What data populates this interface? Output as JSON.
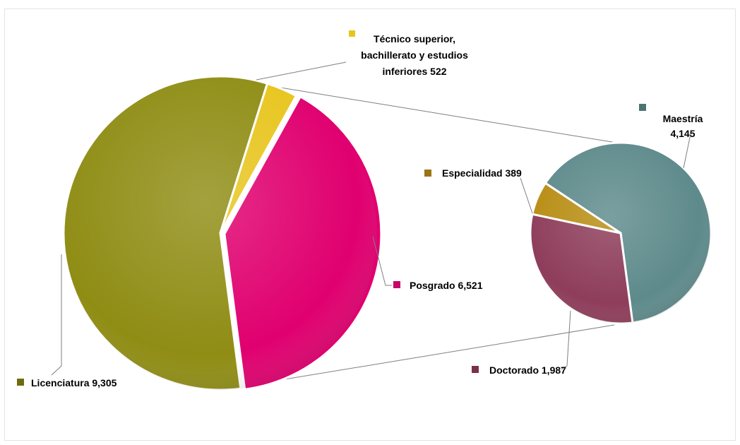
{
  "chart_data": {
    "type": "pie",
    "subtype": "pie-of-pie",
    "title": "",
    "primary": {
      "slices": [
        {
          "label": "Licenciatura",
          "value": 9305,
          "value_label": "9,305",
          "color": "#8f8d14"
        },
        {
          "label": "Técnico superior, bachillerato y estudios inferiores",
          "value": 522,
          "value_label": "522",
          "color": "#e8c51e"
        },
        {
          "label": "Posgrado",
          "value": 6521,
          "value_label": "6,521",
          "color": "#e0006f"
        }
      ]
    },
    "secondary": {
      "breakdown_of": "Posgrado",
      "slices": [
        {
          "label": "Maestría",
          "value": 4145,
          "value_label": "4,145",
          "color": "#5e8a8b"
        },
        {
          "label": "Doctorado",
          "value": 1987,
          "value_label": "1,987",
          "color": "#8e3d5a"
        },
        {
          "label": "Especialidad",
          "value": 389,
          "value_label": "389",
          "color": "#b88d13"
        }
      ]
    }
  },
  "labels": {
    "tecnico_line1": "Técnico superior,",
    "tecnico_line2": "bachillerato y estudios",
    "tecnico_line3": "inferiores  522",
    "posgrado": "Posgrado 6,521",
    "licenciatura": "Licenciatura  9,305",
    "especialidad": "Especialidad 389",
    "maestria_line1": "Maestría",
    "maestria_line2": "4,145",
    "doctorado": "Doctorado 1,987"
  }
}
